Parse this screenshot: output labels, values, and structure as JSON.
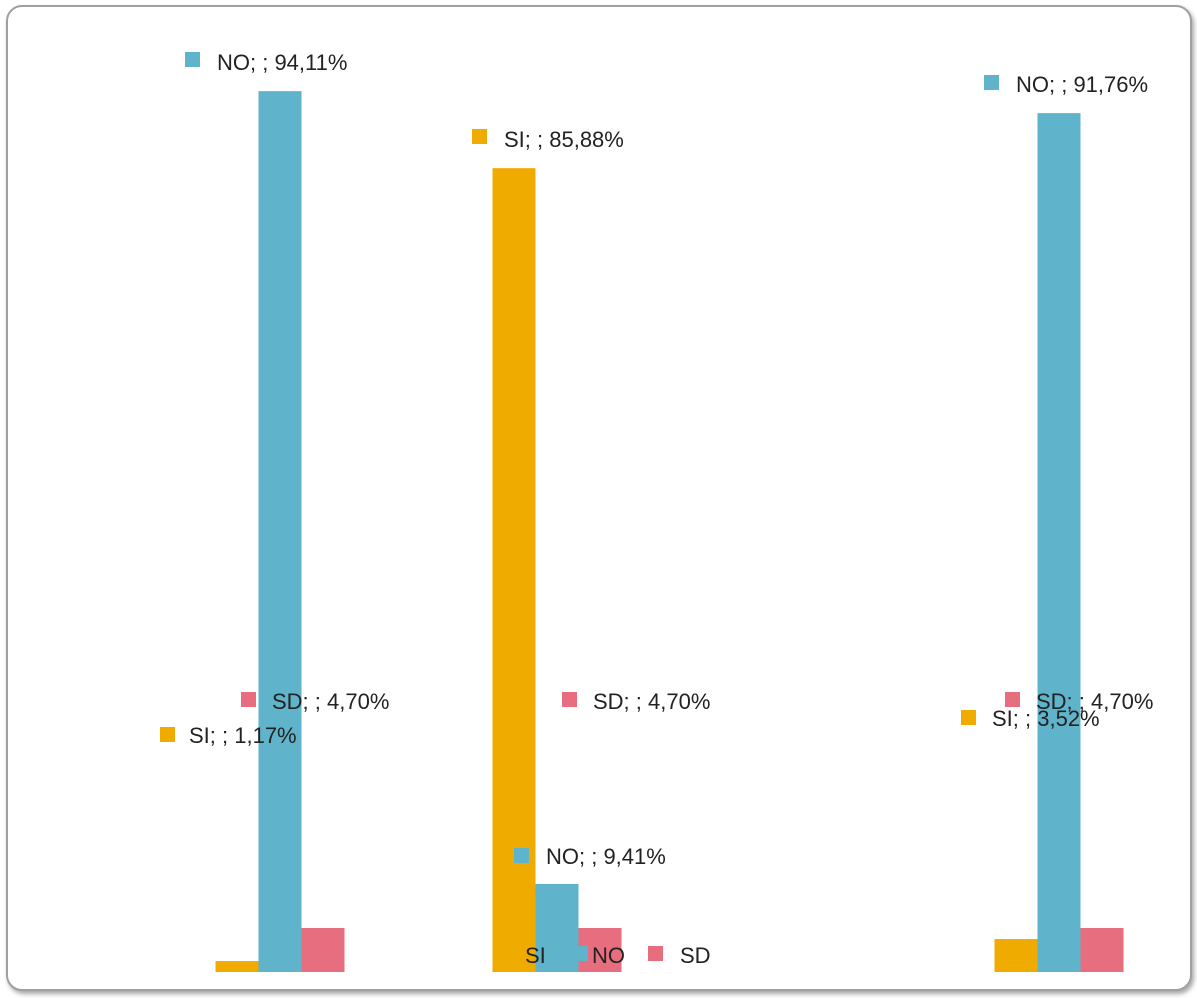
{
  "chart_data": {
    "type": "bar",
    "categories": [
      "",
      "",
      ""
    ],
    "series": [
      {
        "name": "SI",
        "values": [
          1.17,
          85.88,
          3.52
        ],
        "color": "#F0AB00"
      },
      {
        "name": "NO",
        "values": [
          94.11,
          9.41,
          91.76
        ],
        "color": "#5FB4CB"
      },
      {
        "name": "SD",
        "values": [
          4.7,
          4.7,
          4.7
        ],
        "color": "#E76E7E"
      }
    ],
    "data_labels": [
      [
        "SI; ; 1,17%",
        "SI; ; 85,88%",
        "SI; ; 3,52%"
      ],
      [
        "NO; ; 94,11%",
        "NO; ; 9,41%",
        "NO; ; 91,76%"
      ],
      [
        "SD; ; 4,70%",
        "SD; ; 4,70%",
        "SD; ; 4,70%"
      ]
    ],
    "title": "",
    "xlabel": "",
    "ylabel": "",
    "ylim": [
      0,
      100
    ],
    "grid": false,
    "legend_position": "bottom"
  }
}
